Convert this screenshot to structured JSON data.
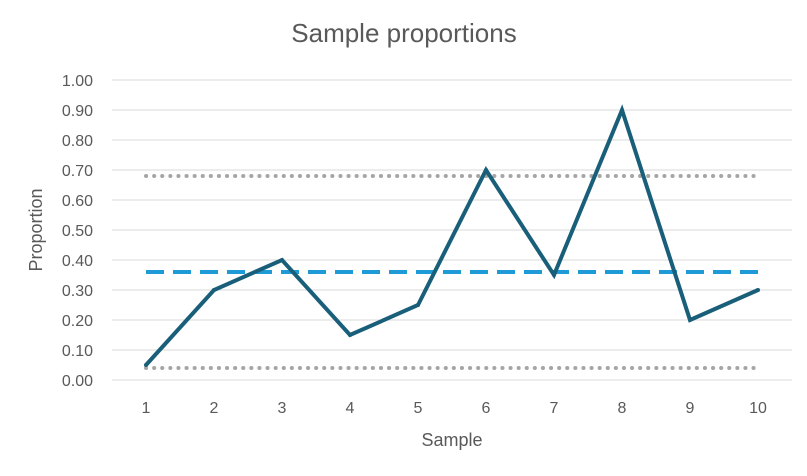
{
  "chart_data": {
    "type": "line",
    "title": "Sample proportions",
    "xlabel": "Sample",
    "ylabel": "Proportion",
    "categories": [
      "1",
      "2",
      "3",
      "4",
      "5",
      "6",
      "7",
      "8",
      "9",
      "10"
    ],
    "ylim": [
      0,
      1
    ],
    "yticks": [
      "0.00",
      "0.10",
      "0.20",
      "0.30",
      "0.40",
      "0.50",
      "0.60",
      "0.70",
      "0.80",
      "0.90",
      "1.00"
    ],
    "grid": true,
    "legend": "none",
    "series": [
      {
        "values": [
          0.05,
          0.3,
          0.4,
          0.15,
          0.25,
          0.7,
          0.35,
          0.9,
          0.2,
          0.3
        ],
        "color": "#1a5f7a",
        "style": "solid"
      },
      {
        "values": [
          0.36,
          0.36,
          0.36,
          0.36,
          0.36,
          0.36,
          0.36,
          0.36,
          0.36,
          0.36
        ],
        "color": "#1e9bd7",
        "style": "dashed"
      },
      {
        "values": [
          0.68,
          0.68,
          0.68,
          0.68,
          0.68,
          0.68,
          0.68,
          0.68,
          0.68,
          0.68
        ],
        "color": "#a6a6a6",
        "style": "dotted"
      },
      {
        "values": [
          0.04,
          0.04,
          0.04,
          0.04,
          0.04,
          0.04,
          0.04,
          0.04,
          0.04,
          0.04
        ],
        "color": "#a6a6a6",
        "style": "dotted"
      }
    ]
  }
}
